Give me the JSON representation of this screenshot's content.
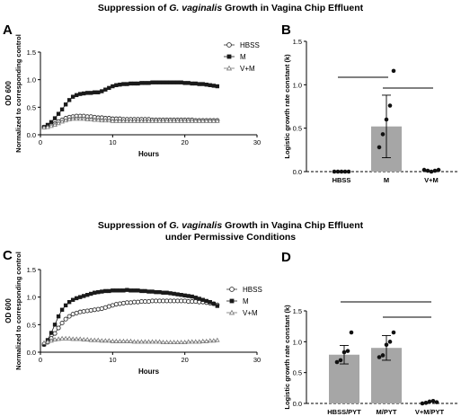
{
  "titles": {
    "top": {
      "pre": "Suppression of ",
      "italic": "G. vaginalis",
      "post": " Growth in Vagina Chip Effluent"
    },
    "bottom_line1": {
      "pre": "Suppression of ",
      "italic": "G. vaginalis",
      "post": " Growth in Vagina Chip Effluent"
    },
    "bottom_line2": "under Permissive Conditions"
  },
  "panel_labels": {
    "A": "A",
    "B": "B",
    "C": "C",
    "D": "D"
  },
  "chart_data": [
    {
      "panel": "A",
      "type": "line",
      "ylabel": "OD 600",
      "ylabel2": "Normalized to corresponding control",
      "xlabel": "Hours",
      "xlim": [
        0,
        30
      ],
      "ylim": [
        0,
        1.5
      ],
      "xticks": [
        "0",
        "10",
        "20",
        "30"
      ],
      "yticks": [
        "0.0",
        "0.5",
        "1.0",
        "1.5"
      ],
      "legend_placement": "top-right",
      "series": [
        {
          "name": "HBSS",
          "marker": "open-circle",
          "color": "#333333",
          "x": [
            0.5,
            1.0,
            1.5,
            2.0,
            2.5,
            3.0,
            3.5,
            4.0,
            4.5,
            5.0,
            5.5,
            6.0,
            6.5,
            7.0,
            7.5,
            8.0,
            8.5,
            9.0,
            9.5,
            10,
            10.5,
            11,
            11.5,
            12,
            12.5,
            13,
            13.5,
            14,
            14.5,
            15,
            15.5,
            16,
            16.5,
            17,
            17.5,
            18,
            18.5,
            19,
            19.5,
            20,
            20.5,
            21,
            21.5,
            22,
            22.5,
            23,
            23.5,
            24,
            24.5
          ],
          "y": [
            0.14,
            0.15,
            0.17,
            0.2,
            0.24,
            0.27,
            0.3,
            0.32,
            0.33,
            0.34,
            0.34,
            0.34,
            0.33,
            0.33,
            0.32,
            0.31,
            0.31,
            0.3,
            0.3,
            0.29,
            0.29,
            0.29,
            0.28,
            0.28,
            0.28,
            0.28,
            0.28,
            0.28,
            0.28,
            0.28,
            0.27,
            0.27,
            0.27,
            0.27,
            0.27,
            0.27,
            0.27,
            0.27,
            0.27,
            0.27,
            0.27,
            0.27,
            0.26,
            0.26,
            0.26,
            0.26,
            0.26,
            0.26,
            0.26
          ]
        },
        {
          "name": "M",
          "marker": "filled-square",
          "color": "#1a1a1a",
          "x": [
            0.5,
            1.0,
            1.5,
            2.0,
            2.5,
            3.0,
            3.5,
            4.0,
            4.5,
            5.0,
            5.5,
            6.0,
            6.5,
            7.0,
            7.5,
            8.0,
            8.5,
            9.0,
            9.5,
            10,
            10.5,
            11,
            11.5,
            12,
            12.5,
            13,
            13.5,
            14,
            14.5,
            15,
            15.5,
            16,
            16.5,
            17,
            17.5,
            18,
            18.5,
            19,
            19.5,
            20,
            20.5,
            21,
            21.5,
            22,
            22.5,
            23,
            23.5,
            24,
            24.5
          ],
          "y": [
            0.14,
            0.18,
            0.23,
            0.3,
            0.38,
            0.46,
            0.55,
            0.63,
            0.69,
            0.72,
            0.74,
            0.75,
            0.76,
            0.76,
            0.77,
            0.77,
            0.79,
            0.82,
            0.85,
            0.88,
            0.9,
            0.91,
            0.92,
            0.92,
            0.93,
            0.93,
            0.93,
            0.94,
            0.94,
            0.94,
            0.95,
            0.95,
            0.95,
            0.95,
            0.95,
            0.95,
            0.95,
            0.95,
            0.95,
            0.94,
            0.94,
            0.93,
            0.93,
            0.92,
            0.92,
            0.91,
            0.9,
            0.89,
            0.88
          ]
        },
        {
          "name": "V+M",
          "marker": "open-triangle",
          "color": "#777777",
          "x": [
            0.5,
            1.0,
            1.5,
            2.0,
            2.5,
            3.0,
            3.5,
            4.0,
            4.5,
            5.0,
            5.5,
            6.0,
            6.5,
            7.0,
            7.5,
            8.0,
            8.5,
            9.0,
            9.5,
            10,
            10.5,
            11,
            11.5,
            12,
            12.5,
            13,
            13.5,
            14,
            14.5,
            15,
            15.5,
            16,
            16.5,
            17,
            17.5,
            18,
            18.5,
            19,
            19.5,
            20,
            20.5,
            21,
            21.5,
            22,
            22.5,
            23,
            23.5,
            24,
            24.5
          ],
          "y": [
            0.13,
            0.14,
            0.16,
            0.18,
            0.21,
            0.24,
            0.26,
            0.28,
            0.29,
            0.29,
            0.29,
            0.29,
            0.28,
            0.28,
            0.27,
            0.27,
            0.26,
            0.26,
            0.26,
            0.25,
            0.25,
            0.25,
            0.25,
            0.25,
            0.25,
            0.25,
            0.25,
            0.25,
            0.25,
            0.25,
            0.25,
            0.25,
            0.25,
            0.25,
            0.25,
            0.25,
            0.25,
            0.25,
            0.25,
            0.25,
            0.25,
            0.25,
            0.25,
            0.25,
            0.25,
            0.25,
            0.25,
            0.25,
            0.25
          ]
        }
      ]
    },
    {
      "panel": "B",
      "type": "bar",
      "ylabel": "Logistic growth rate constant (k)",
      "ylim": [
        0,
        1.5
      ],
      "yticks": [
        "0.0",
        "0.5",
        "1.0",
        "1.5"
      ],
      "categories": [
        "HBSS",
        "M",
        "V+M"
      ],
      "values": [
        0.0,
        0.52,
        0.01
      ],
      "errors": [
        0.0,
        0.36,
        0.0
      ],
      "points": [
        [
          0,
          0,
          0,
          0,
          0
        ],
        [
          0.28,
          0.43,
          0.6,
          0.76,
          1.16
        ],
        [
          0.02,
          0.01,
          0.0,
          0.01,
          0.02
        ]
      ],
      "bar_color": "#a6a6a6",
      "significance_lines": [
        [
          0,
          1
        ],
        [
          1,
          2
        ]
      ]
    },
    {
      "panel": "C",
      "type": "line",
      "ylabel": "OD 600",
      "ylabel2": "Normalized to corresponding control",
      "xlabel": "Hours",
      "xlim": [
        0,
        30
      ],
      "ylim": [
        0,
        1.5
      ],
      "xticks": [
        "0",
        "10",
        "20",
        "30"
      ],
      "yticks": [
        "0.0",
        "0.5",
        "1.0",
        "1.5"
      ],
      "legend_placement": "top-right",
      "series": [
        {
          "name": "HBSS",
          "marker": "open-circle",
          "color": "#333333",
          "x": [
            0.5,
            1.0,
            1.5,
            2.0,
            2.5,
            3.0,
            3.5,
            4.0,
            4.5,
            5.0,
            5.5,
            6.0,
            6.5,
            7.0,
            7.5,
            8.0,
            8.5,
            9.0,
            9.5,
            10,
            10.5,
            11,
            11.5,
            12,
            12.5,
            13,
            13.5,
            14,
            14.5,
            15,
            15.5,
            16,
            16.5,
            17,
            17.5,
            18,
            18.5,
            19,
            19.5,
            20,
            20.5,
            21,
            21.5,
            22,
            22.5,
            23,
            23.5,
            24,
            24.5
          ],
          "y": [
            0.14,
            0.18,
            0.25,
            0.34,
            0.44,
            0.53,
            0.6,
            0.65,
            0.69,
            0.71,
            0.73,
            0.74,
            0.75,
            0.76,
            0.77,
            0.78,
            0.79,
            0.81,
            0.83,
            0.85,
            0.87,
            0.88,
            0.89,
            0.9,
            0.9,
            0.91,
            0.91,
            0.92,
            0.92,
            0.92,
            0.93,
            0.93,
            0.93,
            0.93,
            0.93,
            0.93,
            0.93,
            0.93,
            0.93,
            0.93,
            0.92,
            0.92,
            0.92,
            0.91,
            0.91,
            0.9,
            0.89,
            0.88,
            0.86
          ]
        },
        {
          "name": "M",
          "marker": "filled-square",
          "color": "#1a1a1a",
          "x": [
            0.5,
            1.0,
            1.5,
            2.0,
            2.5,
            3.0,
            3.5,
            4.0,
            4.5,
            5.0,
            5.5,
            6.0,
            6.5,
            7.0,
            7.5,
            8.0,
            8.5,
            9.0,
            9.5,
            10,
            10.5,
            11,
            11.5,
            12,
            12.5,
            13,
            13.5,
            14,
            14.5,
            15,
            15.5,
            16,
            16.5,
            17,
            17.5,
            18,
            18.5,
            19,
            19.5,
            20,
            20.5,
            21,
            21.5,
            22,
            22.5,
            23,
            23.5,
            24,
            24.5
          ],
          "y": [
            0.14,
            0.22,
            0.35,
            0.5,
            0.65,
            0.77,
            0.85,
            0.91,
            0.95,
            0.98,
            1.0,
            1.02,
            1.04,
            1.06,
            1.08,
            1.09,
            1.1,
            1.11,
            1.11,
            1.12,
            1.12,
            1.12,
            1.12,
            1.13,
            1.12,
            1.12,
            1.12,
            1.11,
            1.11,
            1.1,
            1.1,
            1.09,
            1.09,
            1.08,
            1.08,
            1.07,
            1.06,
            1.05,
            1.04,
            1.03,
            1.02,
            1.01,
            0.99,
            0.97,
            0.95,
            0.93,
            0.91,
            0.88,
            0.84
          ]
        },
        {
          "name": "V+M",
          "marker": "open-triangle",
          "color": "#777777",
          "x": [
            0.5,
            1.0,
            1.5,
            2.0,
            2.5,
            3.0,
            3.5,
            4.0,
            4.5,
            5.0,
            5.5,
            6.0,
            6.5,
            7.0,
            7.5,
            8.0,
            8.5,
            9.0,
            9.5,
            10,
            10.5,
            11,
            11.5,
            12,
            12.5,
            13,
            13.5,
            14,
            14.5,
            15,
            15.5,
            16,
            16.5,
            17,
            17.5,
            18,
            18.5,
            19,
            19.5,
            20,
            20.5,
            21,
            21.5,
            22,
            22.5,
            23,
            23.5,
            24,
            24.5
          ],
          "y": [
            0.17,
            0.19,
            0.21,
            0.23,
            0.24,
            0.25,
            0.25,
            0.25,
            0.24,
            0.24,
            0.24,
            0.23,
            0.23,
            0.22,
            0.22,
            0.22,
            0.21,
            0.21,
            0.21,
            0.2,
            0.2,
            0.2,
            0.2,
            0.2,
            0.2,
            0.19,
            0.19,
            0.19,
            0.19,
            0.19,
            0.19,
            0.19,
            0.19,
            0.18,
            0.18,
            0.18,
            0.18,
            0.18,
            0.18,
            0.18,
            0.19,
            0.19,
            0.19,
            0.19,
            0.2,
            0.2,
            0.21,
            0.21,
            0.22
          ]
        }
      ]
    },
    {
      "panel": "D",
      "type": "bar",
      "ylabel": "Logistic growth rate constant (k)",
      "ylim": [
        0,
        1.5
      ],
      "yticks": [
        "0.0",
        "0.5",
        "1.0",
        "1.5"
      ],
      "categories": [
        "HBSS/PYT",
        "M/PYT",
        "V+M/PYT"
      ],
      "values": [
        0.79,
        0.9,
        0.02
      ],
      "errors": [
        0.15,
        0.2,
        0.0
      ],
      "points": [
        [
          0.67,
          0.7,
          0.83,
          0.85,
          1.15
        ],
        [
          0.75,
          0.78,
          0.95,
          1.0,
          1.15
        ],
        [
          0.0,
          0.01,
          0.03,
          0.04,
          0.02
        ]
      ],
      "bar_color": "#a6a6a6",
      "significance_lines": [
        [
          0,
          2
        ],
        [
          1,
          2
        ]
      ]
    }
  ]
}
